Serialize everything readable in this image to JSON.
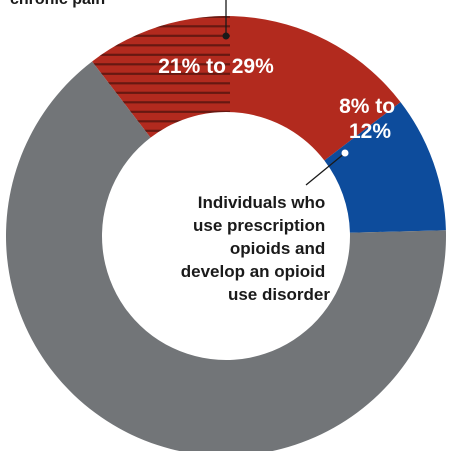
{
  "chart_data": {
    "type": "pie",
    "donut": true,
    "categories": [
      "21% to 29%",
      "8% to 12%",
      ""
    ],
    "values": [
      25,
      10,
      65
    ],
    "slices": [
      {
        "label": "21% to 29%",
        "value": 25,
        "color": "#b22a1e",
        "hatched_portion": true
      },
      {
        "label": "8% to 12%",
        "value": 10,
        "color": "#0d4c9c",
        "hatched_portion": true
      },
      {
        "label": "",
        "value": 65,
        "color": "#727578",
        "hatched_portion": false
      }
    ],
    "annotations": {
      "top_partial": "chronic pain",
      "inner_callout": [
        "Individuals who",
        "use prescription",
        "opioids and",
        "develop an opioid",
        "use disorder"
      ]
    }
  }
}
